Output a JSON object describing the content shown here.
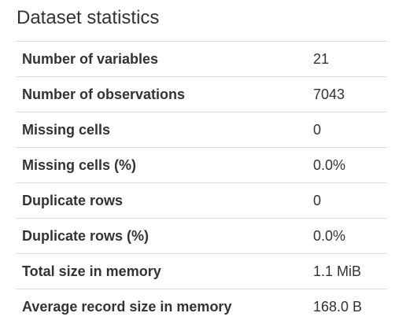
{
  "section": {
    "title": "Dataset statistics"
  },
  "stats": {
    "rows": [
      {
        "label": "Number of variables",
        "value": "21"
      },
      {
        "label": "Number of observations",
        "value": "7043"
      },
      {
        "label": "Missing cells",
        "value": "0"
      },
      {
        "label": "Missing cells (%)",
        "value": "0.0%"
      },
      {
        "label": "Duplicate rows",
        "value": "0"
      },
      {
        "label": "Duplicate rows (%)",
        "value": "0.0%"
      },
      {
        "label": "Total size in memory",
        "value": "1.1 MiB"
      },
      {
        "label": "Average record size in memory",
        "value": "168.0 B"
      }
    ]
  }
}
